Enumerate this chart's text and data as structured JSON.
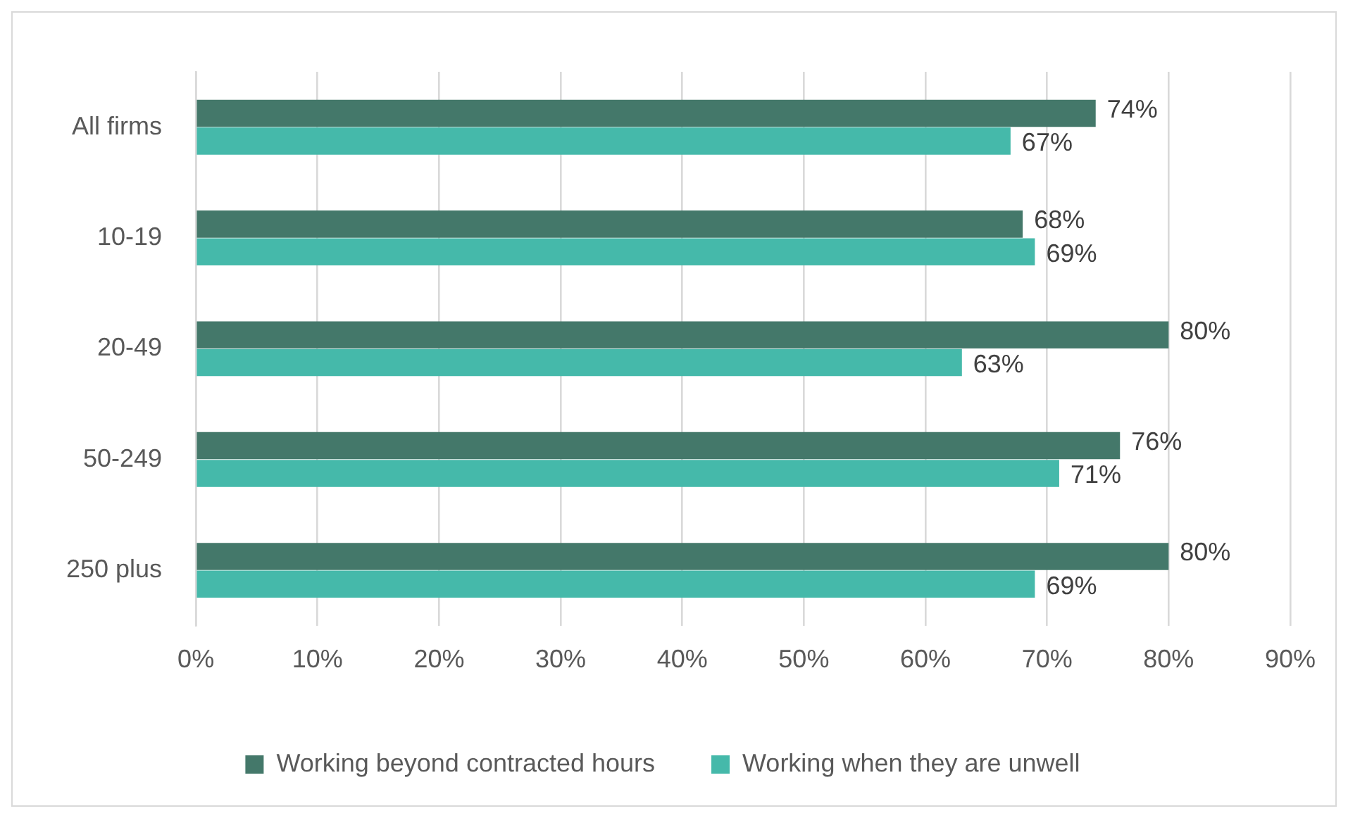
{
  "chart_data": {
    "type": "bar",
    "orientation": "horizontal",
    "categories": [
      "All firms",
      "10-19",
      "20-49",
      "50-249",
      "250 plus"
    ],
    "series": [
      {
        "name": "Working beyond contracted hours",
        "color": "#44786a",
        "values": [
          74,
          68,
          80,
          76,
          80
        ],
        "value_labels": [
          "74%",
          "68%",
          "80%",
          "76%",
          "80%"
        ]
      },
      {
        "name": "Working when they are unwell",
        "color": "#45b9aa",
        "values": [
          67,
          69,
          63,
          71,
          69
        ],
        "value_labels": [
          "67%",
          "69%",
          "63%",
          "71%",
          "69%"
        ]
      }
    ],
    "xlim": [
      0,
      90
    ],
    "xticks": [
      {
        "value": 0,
        "label": "0%"
      },
      {
        "value": 10,
        "label": "10%"
      },
      {
        "value": 20,
        "label": "20%"
      },
      {
        "value": 30,
        "label": "30%"
      },
      {
        "value": 40,
        "label": "40%"
      },
      {
        "value": 50,
        "label": "50%"
      },
      {
        "value": 60,
        "label": "60%"
      },
      {
        "value": 70,
        "label": "70%"
      },
      {
        "value": 80,
        "label": "80%"
      },
      {
        "value": 90,
        "label": "90%"
      }
    ],
    "grid": "x",
    "legend": "bottom"
  }
}
